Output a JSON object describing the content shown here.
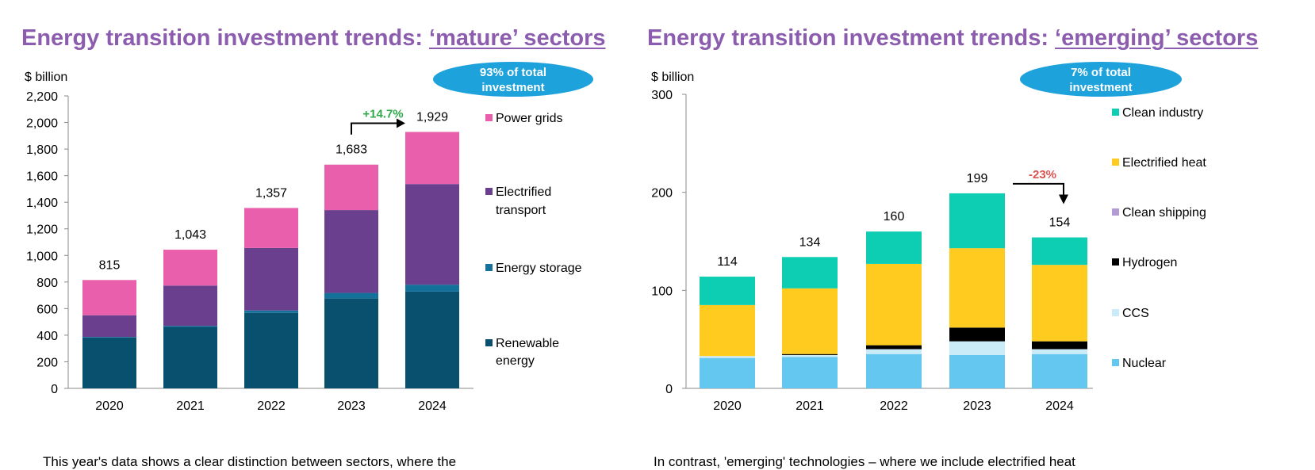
{
  "chart_data": [
    {
      "type": "bar",
      "stacked": true,
      "title_prefix": "Energy transition investment trends: ",
      "title_highlight": "‘mature’ sectors",
      "ylabel": "$ billion",
      "ylim": [
        0,
        2200
      ],
      "yticks": [
        "0",
        "200",
        "400",
        "600",
        "800",
        "1,000",
        "1,200",
        "1,400",
        "1,600",
        "1,800",
        "2,000",
        "2,200"
      ],
      "ytick_values": [
        0,
        200,
        400,
        600,
        800,
        1000,
        1200,
        1400,
        1600,
        1800,
        2000,
        2200
      ],
      "categories": [
        "2020",
        "2021",
        "2022",
        "2023",
        "2024"
      ],
      "series": [
        {
          "name": "Renewable energy",
          "legend_lines": [
            "Renewable",
            "energy"
          ],
          "color": "#08506E",
          "values": [
            382,
            462,
            568,
            676,
            728
          ]
        },
        {
          "name": "Energy storage",
          "legend_lines": [
            "Energy storage"
          ],
          "color": "#14729A",
          "values": [
            5,
            8,
            18,
            42,
            52
          ]
        },
        {
          "name": "Electrified transport",
          "legend_lines": [
            "Electrified",
            "transport"
          ],
          "color": "#6A3F8D",
          "values": [
            163,
            303,
            470,
            623,
            757
          ]
        },
        {
          "name": "Power grids",
          "legend_lines": [
            "Power grids"
          ],
          "color": "#EA5FAB",
          "values": [
            265,
            270,
            301,
            342,
            392
          ]
        }
      ],
      "totals": [
        "815",
        "1,043",
        "1,357",
        "1,683",
        "1,929"
      ],
      "total_values": [
        815,
        1043,
        1357,
        1683,
        1929
      ],
      "badge_lines": [
        "93% of total",
        "investment"
      ],
      "badge_color": "#1EA2DC",
      "annotation": {
        "text": "+14.7%",
        "color": "#2EAA4A",
        "from": "2023",
        "to": "2024"
      }
    },
    {
      "type": "bar",
      "stacked": true,
      "title_prefix": "Energy transition investment trends: ",
      "title_highlight": "‘emerging’ sectors",
      "ylabel": "$ billion",
      "ylim": [
        0,
        300
      ],
      "yticks": [
        "0",
        "100",
        "200",
        "300"
      ],
      "ytick_values": [
        0,
        100,
        200,
        300
      ],
      "categories": [
        "2020",
        "2021",
        "2022",
        "2023",
        "2024"
      ],
      "series": [
        {
          "name": "Nuclear",
          "legend_lines": [
            "Nuclear"
          ],
          "color": "#63C7EF",
          "values": [
            31,
            32,
            35,
            34,
            35
          ]
        },
        {
          "name": "CCS",
          "legend_lines": [
            "CCS"
          ],
          "color": "#C9ECF8",
          "values": [
            2,
            2,
            5,
            14,
            5
          ]
        },
        {
          "name": "Hydrogen",
          "legend_lines": [
            "Hydrogen"
          ],
          "color": "#000000",
          "values": [
            0,
            1,
            4,
            14,
            8
          ]
        },
        {
          "name": "Clean shipping",
          "legend_lines": [
            "Clean shipping"
          ],
          "color": "#B39BD6",
          "values": [
            0,
            0,
            0,
            0,
            0
          ]
        },
        {
          "name": "Electrified heat",
          "legend_lines": [
            "Electrified heat"
          ],
          "color": "#FFCB1F",
          "values": [
            52,
            67,
            83,
            81,
            78
          ]
        },
        {
          "name": "Clean industry",
          "legend_lines": [
            "Clean industry"
          ],
          "color": "#0DCDB3",
          "values": [
            29,
            32,
            33,
            56,
            28
          ]
        }
      ],
      "totals": [
        "114",
        "134",
        "160",
        "199",
        "154"
      ],
      "total_values": [
        114,
        134,
        160,
        199,
        154
      ],
      "badge_lines": [
        "7% of total",
        "investment"
      ],
      "badge_color": "#1EA2DC",
      "annotation": {
        "text": "-23%",
        "color": "#D9534F",
        "from": "2023",
        "to": "2024"
      }
    }
  ],
  "captions": [
    "This year's data shows a clear distinction between sectors, where the",
    "In contrast, 'emerging' technologies – where we include electrified heat"
  ]
}
